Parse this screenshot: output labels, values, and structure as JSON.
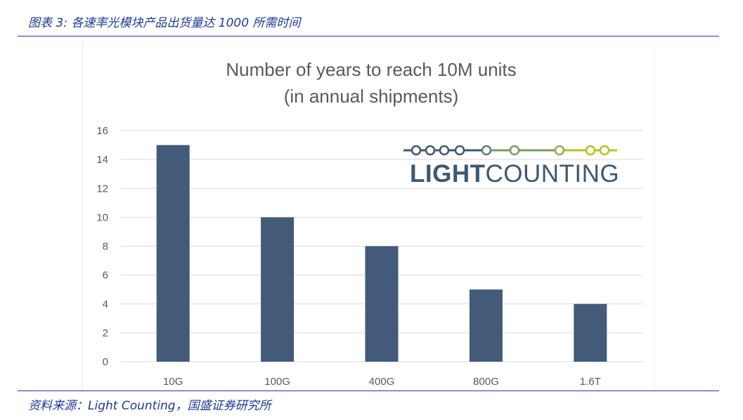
{
  "header": {
    "title": "图表 3:  各速率光模块产品出货量达 1000 所需时间"
  },
  "footer": {
    "source": "资料来源：Light Counting，国盛证券研究所"
  },
  "logo": {
    "bold_text": "LIGHT",
    "light_text": "COUNTING",
    "line_colors": [
      "#3f5870",
      "#7a9a6a",
      "#b8c02a"
    ]
  },
  "colors": {
    "bar": "#435a78",
    "grid": "#d9d9d9",
    "axis_text": "#595959",
    "title": "#595959"
  },
  "chart_data": {
    "type": "bar",
    "title_lines": [
      "Number of years to reach 10M units",
      "(in annual shipments)"
    ],
    "categories": [
      "10G",
      "100G",
      "400G",
      "800G",
      "1.6T"
    ],
    "values": [
      15,
      10,
      8,
      5,
      4
    ],
    "ylim": [
      0,
      16
    ],
    "yticks": [
      0,
      2,
      4,
      6,
      8,
      10,
      12,
      14,
      16
    ],
    "grid": true,
    "legend": "none"
  }
}
